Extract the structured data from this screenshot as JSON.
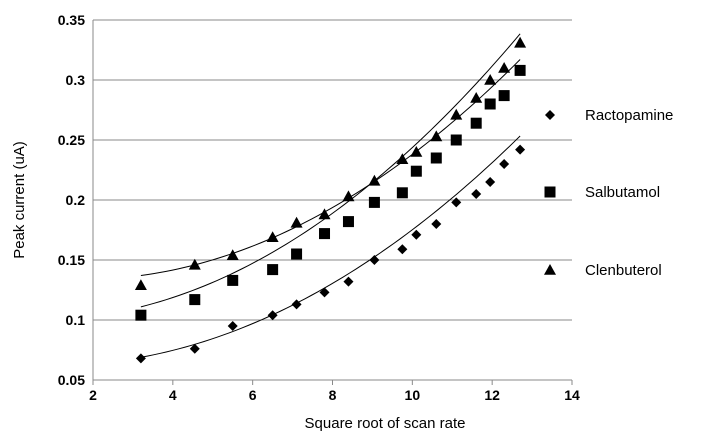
{
  "chart_data": {
    "type": "scatter",
    "xlabel": "Square root of scan rate",
    "ylabel": "Peak current (uA)",
    "xlim": [
      2,
      14
    ],
    "ylim": [
      0.05,
      0.35
    ],
    "x_ticks": [
      2,
      4,
      6,
      8,
      10,
      12,
      14
    ],
    "y_ticks": [
      0.05,
      0.1,
      0.15,
      0.2,
      0.25,
      0.3,
      0.35
    ],
    "y_tick_labels": [
      "0.05",
      "0.1",
      "0.15",
      "0.2",
      "0.25",
      "0.3",
      "0.35"
    ],
    "grid": "horizontal",
    "legend_position": "right",
    "series": [
      {
        "name": "Ractopamine",
        "marker": "diamond",
        "x": [
          3.2,
          4.55,
          5.5,
          6.5,
          7.1,
          7.8,
          8.4,
          9.05,
          9.75,
          10.1,
          10.6,
          11.1,
          11.6,
          11.95,
          12.3,
          12.7
        ],
        "y": [
          0.068,
          0.076,
          0.095,
          0.104,
          0.113,
          0.123,
          0.132,
          0.15,
          0.159,
          0.171,
          0.18,
          0.198,
          0.205,
          0.215,
          0.23,
          0.242
        ],
        "fit": [
          0.0637,
          -0.00285,
          0.0014
        ]
      },
      {
        "name": "Salbutamol",
        "marker": "square",
        "x": [
          3.2,
          4.55,
          5.5,
          6.5,
          7.1,
          7.8,
          8.4,
          9.05,
          9.75,
          10.1,
          10.6,
          11.1,
          11.6,
          11.95,
          12.3,
          12.7
        ],
        "y": [
          0.104,
          0.117,
          0.133,
          0.142,
          0.155,
          0.172,
          0.182,
          0.198,
          0.206,
          0.224,
          0.235,
          0.25,
          0.264,
          0.28,
          0.287,
          0.308
        ],
        "fit": [
          0.101,
          -0.00213,
          0.00164
        ]
      },
      {
        "name": "Clenbuterol",
        "marker": "triangle",
        "x": [
          3.2,
          4.55,
          5.5,
          6.5,
          7.1,
          7.8,
          8.4,
          9.05,
          9.75,
          10.1,
          10.6,
          11.1,
          11.6,
          11.95,
          12.3,
          12.7
        ],
        "y": [
          0.129,
          0.146,
          0.154,
          0.169,
          0.181,
          0.188,
          0.203,
          0.216,
          0.234,
          0.24,
          0.253,
          0.271,
          0.285,
          0.3,
          0.31,
          0.331
        ],
        "fit": [
          0.1382,
          -0.00522,
          0.00152
        ]
      }
    ]
  }
}
